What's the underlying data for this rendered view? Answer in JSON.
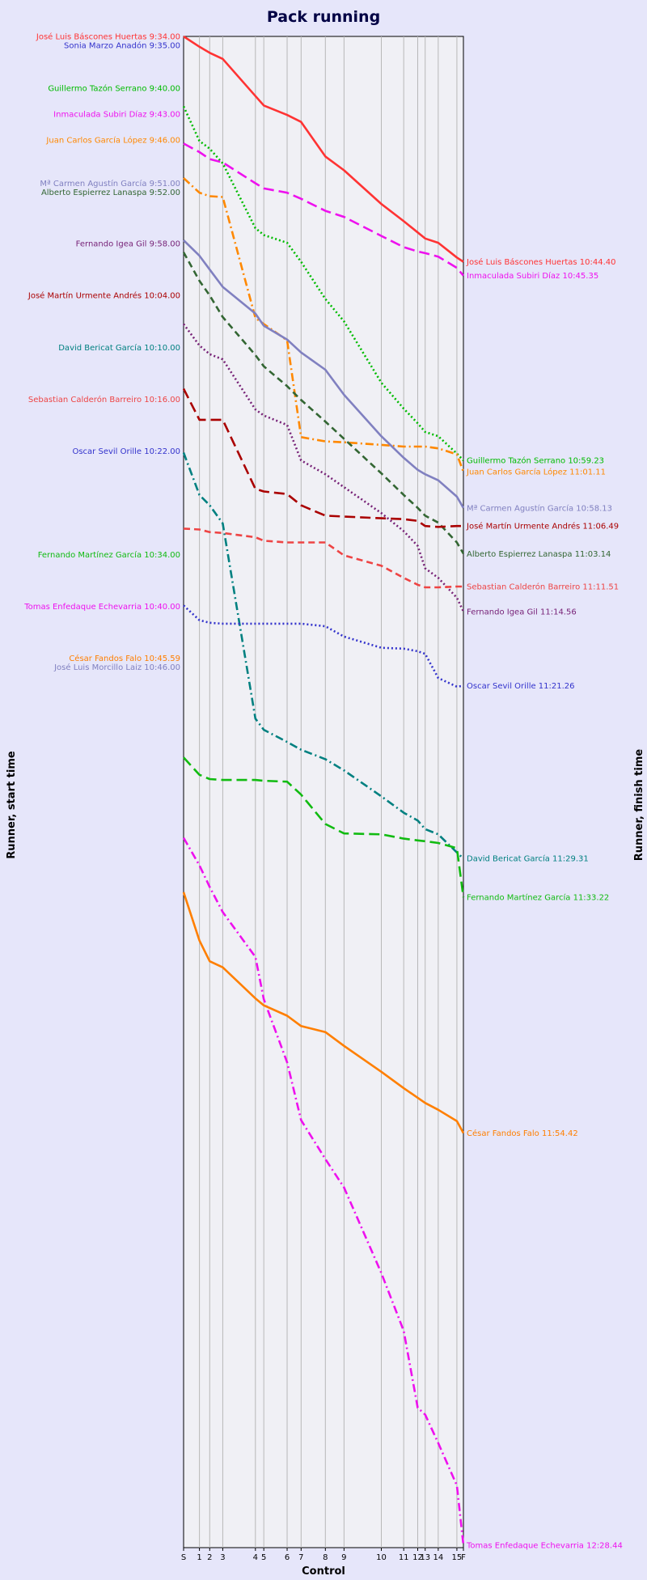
{
  "chart_data": {
    "type": "line",
    "title": "Pack running",
    "xlabel": "Control",
    "ylabel_left": "Runner, start time",
    "ylabel_right": "Runner, finish time",
    "y_reversed": true,
    "y_unit": "minutes after 9:34",
    "ylim": [
      0,
      175
    ],
    "controls": [
      {
        "label": "S",
        "x": 0
      },
      {
        "label": "1",
        "x": 0.85
      },
      {
        "label": "2",
        "x": 1.4
      },
      {
        "label": "3",
        "x": 2.1
      },
      {
        "label": "4",
        "x": 3.85
      },
      {
        "label": "5",
        "x": 4.3
      },
      {
        "label": "6",
        "x": 5.55
      },
      {
        "label": "7",
        "x": 6.3
      },
      {
        "label": "8",
        "x": 7.6
      },
      {
        "label": "9",
        "x": 8.6
      },
      {
        "label": "10",
        "x": 10.6
      },
      {
        "label": "11",
        "x": 11.8
      },
      {
        "label": "12",
        "x": 12.55
      },
      {
        "label": "13",
        "x": 12.95
      },
      {
        "label": "14",
        "x": 13.65
      },
      {
        "label": "15",
        "x": 14.65
      },
      {
        "label": "F",
        "x": 15.0
      }
    ],
    "series": [
      {
        "name": "José Luis Báscones Huertas",
        "start_label": "José Luis Báscones Huertas 9:34.00",
        "finish_label": "José Luis Báscones Huertas 10:44.40",
        "color": "#ff3333",
        "dash": "solid",
        "values": [
          0,
          1.2,
          1.9,
          2.6,
          6.9,
          8.0,
          9.1,
          9.9,
          13.9,
          15.5,
          19.4,
          21.4,
          22.7,
          23.4,
          23.9,
          25.6,
          26.1
        ]
      },
      {
        "name": "Sonia Marzo Anadón",
        "start_label": "Sonia Marzo Anadón 9:35.00",
        "finish_label": "",
        "color": "#3333cc",
        "dash": "solid",
        "values": []
      },
      {
        "name": "Guillermo Tazón Serrano",
        "start_label": "Guillermo Tazón Serrano 9:40.00",
        "finish_label": "Guillermo Tazón Serrano 10:59.23",
        "color": "#00bb00",
        "dash": "dot",
        "values": [
          8.1,
          12.1,
          13.0,
          14.7,
          22.2,
          23.0,
          23.9,
          26.1,
          30.4,
          33.0,
          40.1,
          43.1,
          44.8,
          45.8,
          46.3,
          48.3,
          49.1
        ]
      },
      {
        "name": "Inmaculada Subiri Díaz",
        "start_label": "Inmaculada Subiri Díaz 9:43.00",
        "finish_label": "Inmaculada Subiri Díaz 10:45.35",
        "color": "#ee11ee",
        "dash": "longdash",
        "values": [
          12.4,
          13.4,
          14.2,
          14.6,
          17.0,
          17.6,
          18.1,
          18.8,
          20.2,
          20.9,
          23.1,
          24.4,
          24.9,
          25.1,
          25.5,
          26.8,
          27.7
        ]
      },
      {
        "name": "Juan Carlos García López",
        "start_label": "Juan Carlos García López 9:46.00",
        "finish_label": "Juan Carlos García López 11:01.11",
        "color": "#ff8800",
        "dash": "dashdot",
        "values": [
          16.4,
          18.1,
          18.5,
          18.6,
          32.6,
          33.3,
          35.2,
          46.4,
          46.9,
          47.0,
          47.3,
          47.5,
          47.5,
          47.5,
          47.7,
          48.4,
          50.4
        ]
      },
      {
        "name": "Mª Carmen Agustín García",
        "start_label": "Mª Carmen Agustín García 9:51.00",
        "finish_label": "Mª Carmen Agustín García 10:58.13",
        "color": "#8080c0",
        "dash": "solid",
        "values": [
          23.6,
          25.4,
          27.0,
          29.0,
          32.1,
          33.5,
          35.1,
          36.6,
          38.6,
          41.5,
          46.3,
          48.8,
          50.2,
          50.7,
          51.4,
          53.3,
          54.6
        ]
      },
      {
        "name": "Alberto Espierrez Lanaspa",
        "start_label": "Alberto Espierrez Lanaspa 9:52.00",
        "finish_label": "Alberto Espierrez Lanaspa 11:03.14",
        "color": "#336633",
        "dash": "dash",
        "values": [
          25.0,
          28.3,
          30.0,
          32.5,
          36.9,
          38.2,
          40.5,
          42.1,
          44.6,
          46.6,
          50.6,
          53.1,
          54.6,
          55.5,
          56.3,
          58.6,
          59.9
        ]
      },
      {
        "name": "Fernando Igea Gil",
        "start_label": "Fernando Igea Gil 9:58.00",
        "finish_label": "Fernando Igea Gil 11:14.56",
        "color": "#772277",
        "dash": "dot",
        "values": [
          33.3,
          35.8,
          36.8,
          37.4,
          43.2,
          43.9,
          45.0,
          49.1,
          50.7,
          52.2,
          55.2,
          57.3,
          59.0,
          61.6,
          62.7,
          65.0,
          66.6
        ]
      },
      {
        "name": "José Martín Urmente Andrés",
        "start_label": "José Martín Urmente Andrés 10:04.00",
        "finish_label": "José Martín Urmente Andrés 11:06.49",
        "color": "#aa0000",
        "dash": "longdash",
        "values": [
          40.8,
          44.4,
          44.4,
          44.4,
          52.4,
          52.7,
          53.0,
          54.3,
          55.5,
          55.6,
          55.8,
          55.9,
          56.1,
          56.7,
          56.8,
          56.7,
          56.7
        ]
      },
      {
        "name": "David Bericat García",
        "start_label": "David Bericat García 10:10.00",
        "finish_label": "David Bericat García 11:29.31",
        "color": "#008080",
        "dash": "dashdot",
        "values": [
          48.2,
          53.1,
          54.3,
          56.4,
          79.0,
          80.3,
          81.7,
          82.6,
          83.7,
          85.0,
          88.0,
          89.9,
          90.8,
          91.8,
          92.4,
          94.5,
          95.2
        ]
      },
      {
        "name": "Sebastian Calderón Barreiro",
        "start_label": "Sebastian Calderón Barreiro 10:16.00",
        "finish_label": "Sebastian Calderón Barreiro 11:11.51",
        "color": "#ee4444",
        "dash": "dash",
        "values": [
          57.0,
          57.1,
          57.4,
          57.5,
          58.0,
          58.4,
          58.6,
          58.6,
          58.6,
          60.1,
          61.3,
          62.7,
          63.5,
          63.8,
          63.8,
          63.7,
          63.7
        ]
      },
      {
        "name": "Oscar Sevil Orille",
        "start_label": "Oscar Sevil Orille 10:22.00",
        "finish_label": "Oscar Sevil Orille 11:21.26",
        "color": "#3333cc",
        "dash": "dot",
        "values": [
          65.9,
          67.6,
          67.9,
          68.0,
          68.0,
          68.0,
          68.0,
          68.0,
          68.3,
          69.5,
          70.8,
          70.9,
          71.2,
          71.5,
          74.3,
          75.3,
          75.2
        ]
      },
      {
        "name": "Fernando Martínez García",
        "start_label": "Fernando Martínez García 10:34.00",
        "finish_label": "Fernando Martínez García 11:33.22",
        "color": "#11bb11",
        "dash": "longdash",
        "values": [
          83.5,
          85.5,
          86.0,
          86.1,
          86.1,
          86.2,
          86.3,
          87.8,
          91.2,
          92.3,
          92.4,
          92.9,
          93.1,
          93.2,
          93.4,
          94.0,
          99.7
        ]
      },
      {
        "name": "Tomas Enfedaque Echevarria",
        "start_label": "Tomas Enfedaque Echevarria 10:40.00",
        "finish_label": "Tomas Enfedaque Echevarria 12:28.44",
        "color": "#ee11ee",
        "dash": "dashdot",
        "values": [
          92.8,
          96.0,
          98.5,
          101.4,
          106.6,
          111.5,
          118.8,
          125.5,
          130.0,
          133.3,
          143.2,
          149.9,
          158.8,
          159.6,
          162.9,
          167.8,
          174.7
        ]
      },
      {
        "name": "César Fandos Falo",
        "start_label": "César Fandos Falo 10:45.59",
        "finish_label": "César Fandos Falo 11:54.42",
        "color": "#ff7f00",
        "dash": "solid",
        "values": [
          99.1,
          104.7,
          107.1,
          107.8,
          111.4,
          112.2,
          113.4,
          114.6,
          115.3,
          116.9,
          119.9,
          121.8,
          122.9,
          123.5,
          124.3,
          125.6,
          127.0
        ]
      },
      {
        "name": "José Luis Morcillo Laiz",
        "start_label": "José Luis Morcillo Laiz 10:46.00",
        "finish_label": "",
        "color": "#8080c0",
        "dash": "solid",
        "values": []
      }
    ]
  }
}
